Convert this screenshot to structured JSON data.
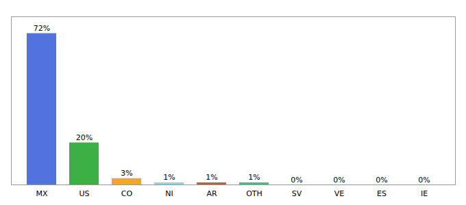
{
  "chart_data": {
    "type": "bar",
    "categories": [
      "MX",
      "US",
      "CO",
      "NI",
      "AR",
      "OTH",
      "SV",
      "VE",
      "ES",
      "IE"
    ],
    "values": [
      72,
      20,
      3,
      1,
      1,
      1,
      0,
      0,
      0,
      0
    ],
    "value_labels": [
      "72%",
      "20%",
      "3%",
      "1%",
      "1%",
      "1%",
      "0%",
      "0%",
      "0%",
      "0%"
    ],
    "colors": [
      "#5272e0",
      "#3cb044",
      "#f5a623",
      "#7dd8f5",
      "#c0622b",
      "#2ecc71",
      "#d0d0d0",
      "#d0d0d0",
      "#d0d0d0",
      "#d0d0d0"
    ],
    "ylim": [
      0,
      80
    ],
    "grid": false,
    "data_labels": true,
    "tick_labels": "x"
  }
}
